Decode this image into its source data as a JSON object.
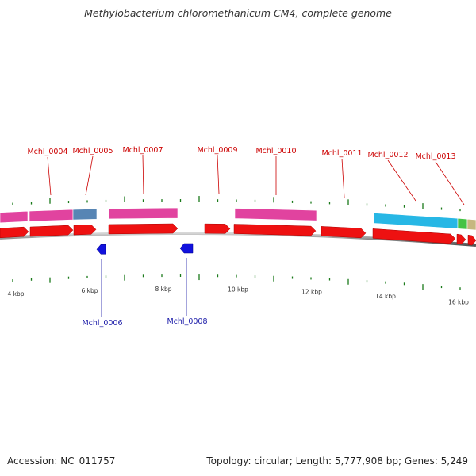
{
  "header": {
    "title": "Methylobacterium chloromethanicum CM4, complete genome"
  },
  "footer": {
    "accession": "Accession: NC_011757",
    "summary": "Topology: circular; Length: 5,777,908 bp; Genes: 5,249"
  },
  "colors": {
    "cds_forward": "#ee1111",
    "cds_reverse": "#1111dd",
    "label_forward": "#cc0000",
    "label_reverse": "#1a1aa8",
    "tick": "#1a7a1a",
    "backbone": "#8a8a8a",
    "cog_magenta": "#e0399a",
    "cog_steelblue": "#4f7fb0",
    "cog_cyan": "#1cb4e4",
    "cog_green": "#3ac03a",
    "cog_olive": "#c4b47a"
  },
  "scale_labels": [
    "4 kbp",
    "6 kbp",
    "8 kbp",
    "10 kbp",
    "12 kbp",
    "14 kbp",
    "16 kbp"
  ],
  "forward_genes": [
    "Mchl_0004",
    "Mchl_0005",
    "Mchl_0007",
    "Mchl_0009",
    "Mchl_0010",
    "Mchl_0011",
    "Mchl_0012",
    "Mchl_0013"
  ],
  "reverse_genes": [
    "Mchl_0006",
    "Mchl_0008"
  ]
}
